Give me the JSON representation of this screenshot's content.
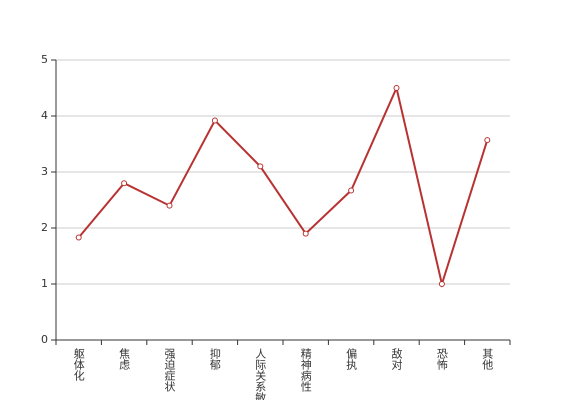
{
  "chart_data": {
    "type": "line",
    "categories": [
      "躯体化",
      "焦虑",
      "强迫症状",
      "抑郁",
      "人际关系敏感",
      "精神病性",
      "偏执",
      "敌对",
      "恐怖",
      "其他"
    ],
    "values": [
      1.83,
      2.8,
      2.4,
      3.92,
      3.1,
      1.9,
      2.67,
      4.5,
      1.0,
      3.57
    ],
    "color": "#b83232",
    "ylim": [
      0,
      5
    ],
    "yticks": [
      0,
      1,
      2,
      3,
      4,
      5
    ],
    "grid": true
  }
}
